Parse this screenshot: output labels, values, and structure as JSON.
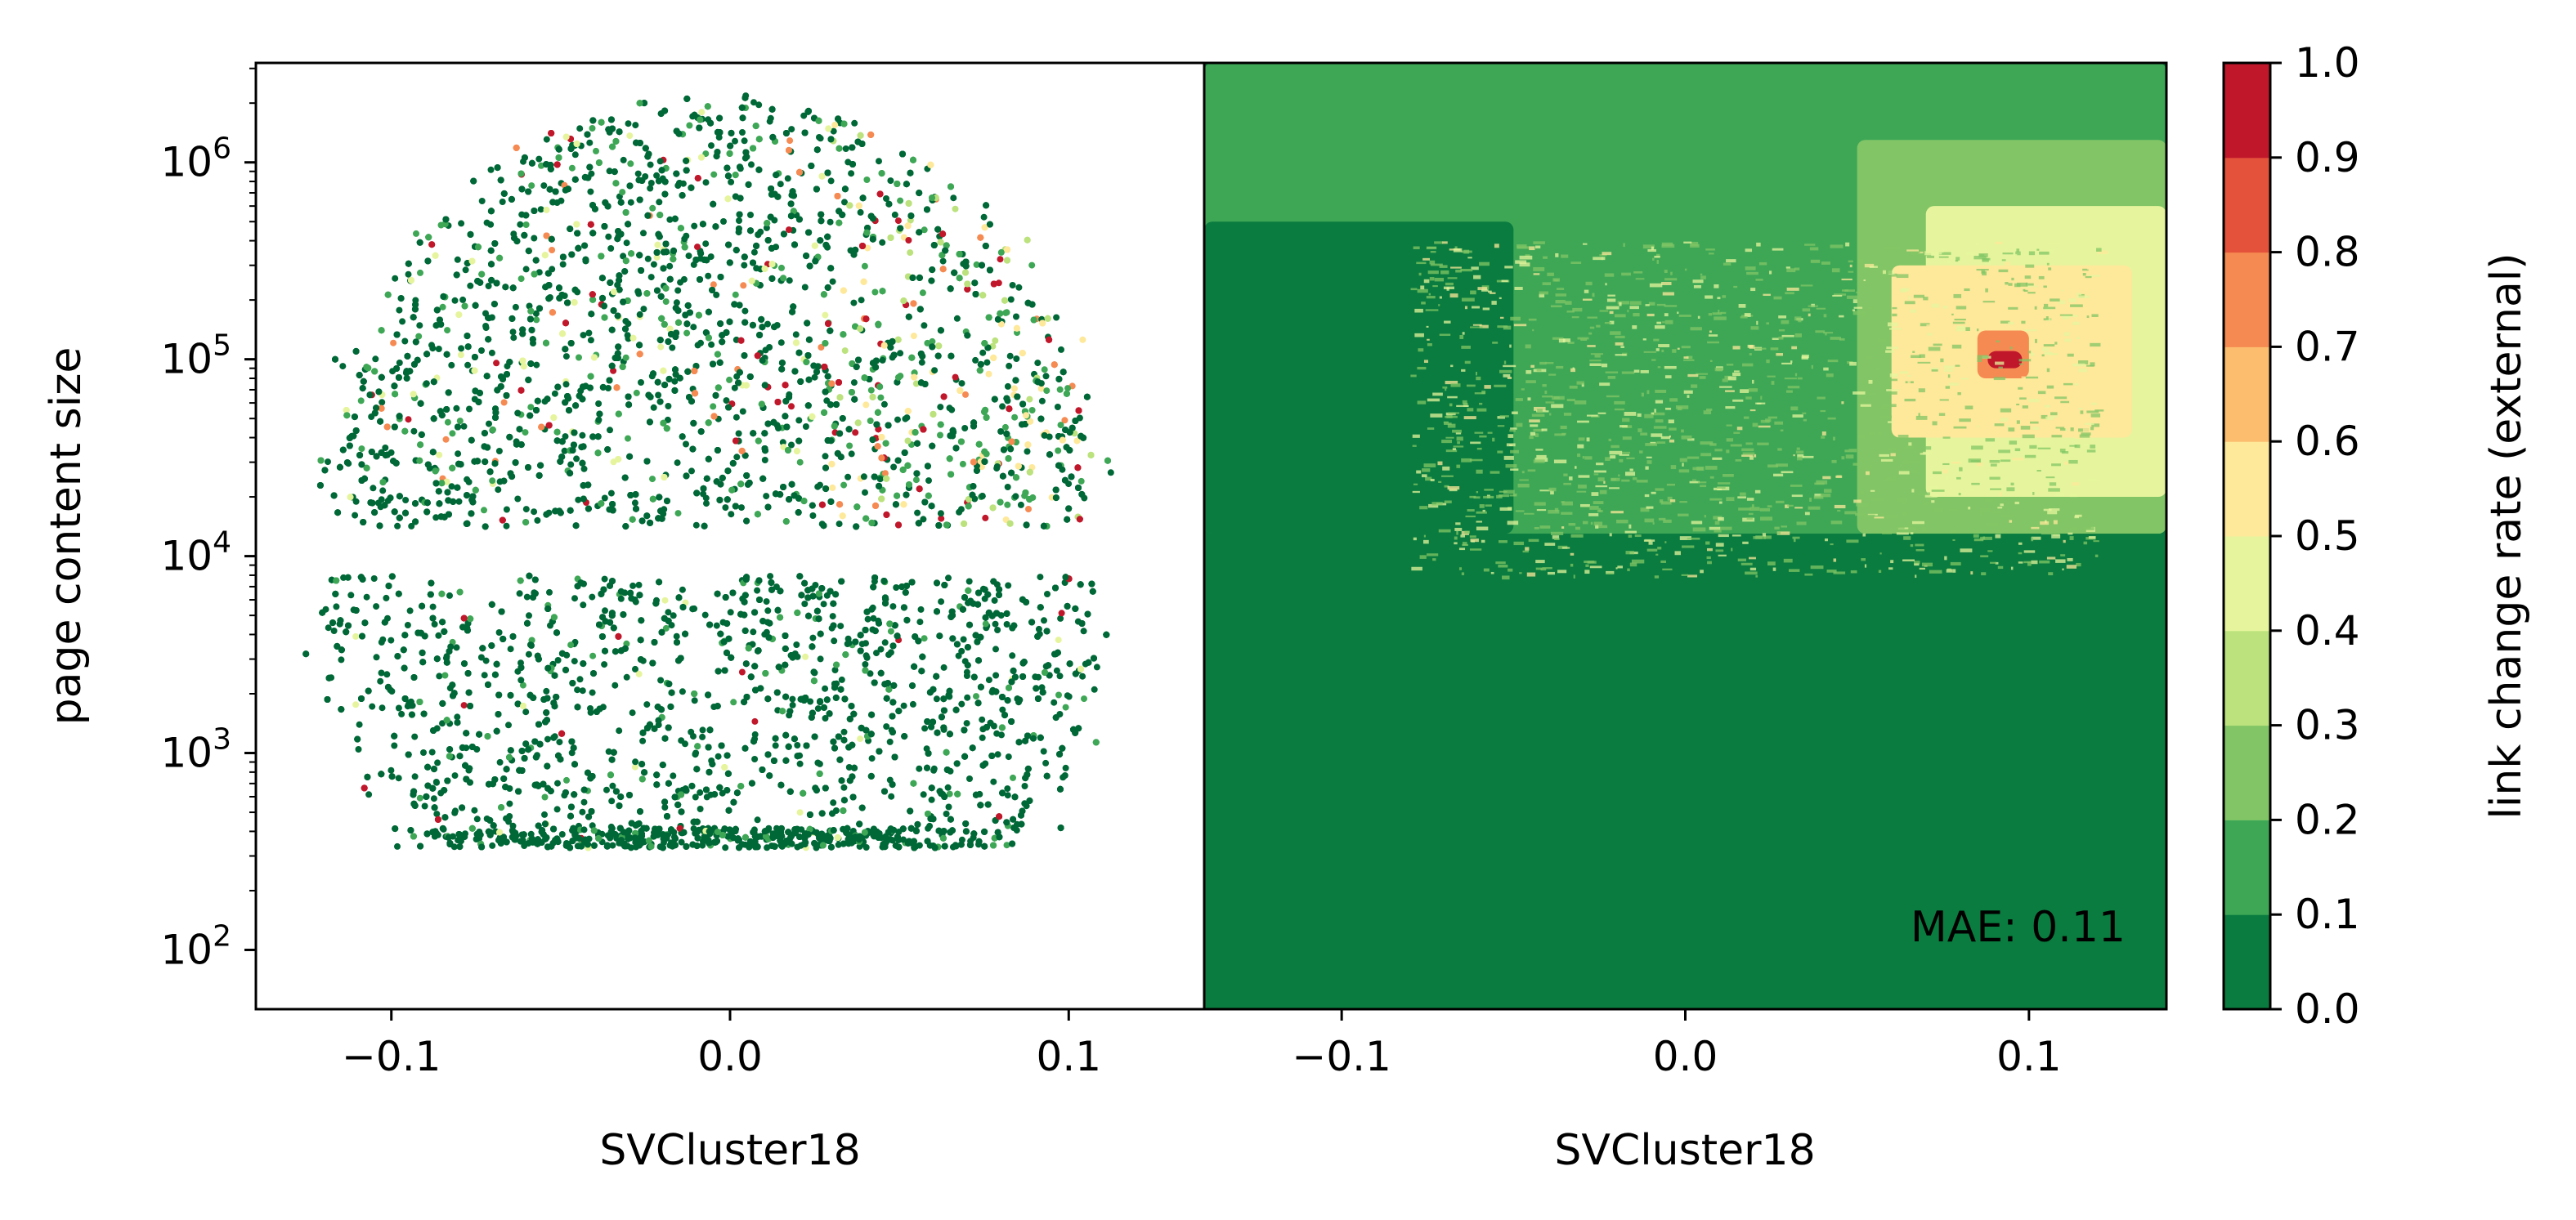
{
  "chart_data": [
    {
      "type": "scatter",
      "panel": "left",
      "xlabel": "SVCluster18",
      "ylabel": "page content size",
      "y_scale": "log",
      "xlim": [
        -0.14,
        0.14
      ],
      "ylim": [
        50,
        3200000
      ],
      "x_ticks": [
        -0.1,
        0.0,
        0.1
      ],
      "x_tick_labels": [
        "−0.1",
        "0.0",
        "0.1"
      ],
      "y_ticks": [
        100,
        1000,
        10000,
        100000,
        1000000
      ],
      "y_tick_labels": [
        {
          "base": "10",
          "exp": "2"
        },
        {
          "base": "10",
          "exp": "3"
        },
        {
          "base": "10",
          "exp": "4"
        },
        {
          "base": "10",
          "exp": "5"
        },
        {
          "base": "10",
          "exp": "6"
        }
      ],
      "grid": false,
      "point_cloud": {
        "x_center": -0.005,
        "x_spread": 0.115,
        "y_center": 10000,
        "y_min": 330,
        "y_max": 2700000,
        "dominant_value": 0.0,
        "high_value_region": {
          "x_range": [
            0.04,
            0.11
          ],
          "y_range": [
            10000,
            1000000
          ]
        }
      }
    },
    {
      "type": "heatmap",
      "panel": "right",
      "xlabel": "SVCluster18",
      "y_scale": "log",
      "xlim": [
        -0.14,
        0.14
      ],
      "ylim": [
        50,
        3200000
      ],
      "x_ticks": [
        -0.1,
        0.0,
        0.1
      ],
      "x_tick_labels": [
        "−0.1",
        "0.0",
        "0.1"
      ],
      "annotation": "MAE: 0.11",
      "regions": [
        {
          "value": 0.15,
          "x": [
            -0.14,
            0.14
          ],
          "y": [
            13000,
            3200000
          ]
        },
        {
          "value": 0.25,
          "x": [
            0.05,
            0.14
          ],
          "y": [
            13000,
            1300000
          ]
        },
        {
          "value": 0.45,
          "x": [
            0.07,
            0.14
          ],
          "y": [
            20000,
            600000
          ]
        },
        {
          "value": 0.55,
          "x": [
            0.06,
            0.13
          ],
          "y": [
            40000,
            300000
          ]
        },
        {
          "value": 0.75,
          "x": [
            0.085,
            0.1
          ],
          "y": [
            80000,
            140000
          ]
        },
        {
          "value": 0.9,
          "x": [
            0.088,
            0.098
          ],
          "y": [
            90000,
            110000
          ]
        },
        {
          "value": 0.05,
          "x": [
            -0.14,
            0.14
          ],
          "y": [
            50,
            13000
          ]
        },
        {
          "value": 0.05,
          "x": [
            -0.14,
            -0.05
          ],
          "y": [
            13000,
            500000
          ]
        }
      ]
    }
  ],
  "colorbar": {
    "label": "link change rate (external)",
    "ticks": [
      0.0,
      0.1,
      0.2,
      0.3,
      0.4,
      0.5,
      0.6,
      0.7,
      0.8,
      0.9,
      1.0
    ],
    "tick_labels": [
      "0.0",
      "0.1",
      "0.2",
      "0.3",
      "0.4",
      "0.5",
      "0.6",
      "0.7",
      "0.8",
      "0.9",
      "1.0"
    ],
    "colors": [
      "#0a7c3f",
      "#3ea756",
      "#82c566",
      "#bbe27d",
      "#e6f59d",
      "#fee89a",
      "#fdbd6f",
      "#f58a52",
      "#e4523b",
      "#c0172b"
    ],
    "colormap": "RdYlGn_r"
  }
}
